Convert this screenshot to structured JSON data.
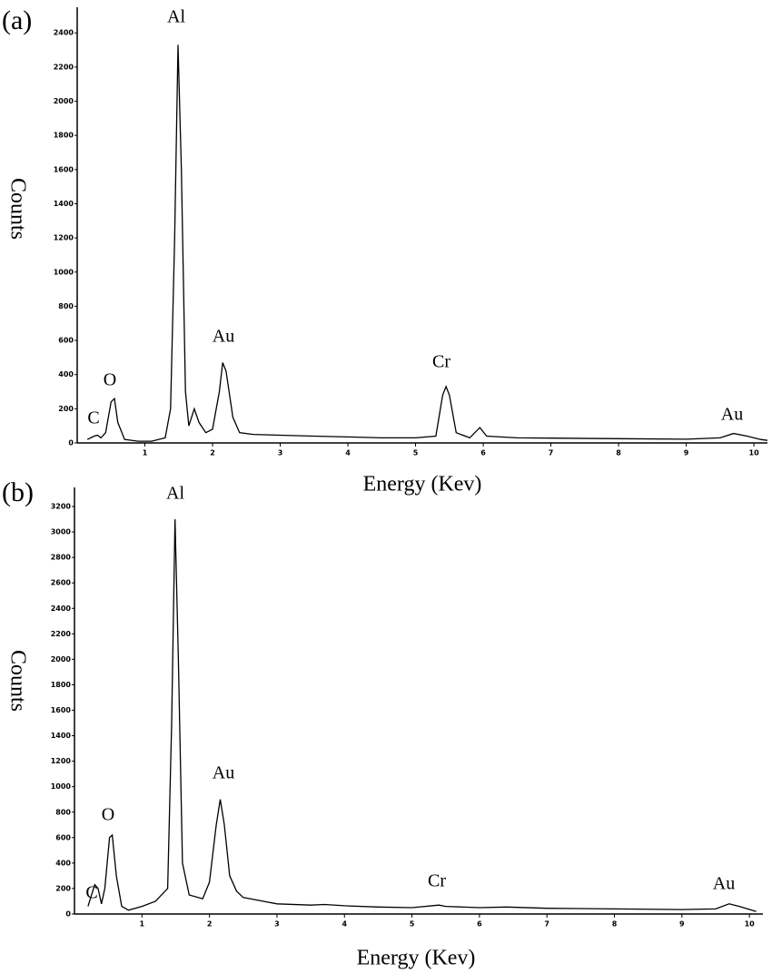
{
  "chart_data": [
    {
      "type": "line",
      "label": "(a)",
      "xlabel": "Energy (Kev)",
      "ylabel": "Counts",
      "color": "#000000",
      "x": [
        0.15,
        0.25,
        0.3,
        0.35,
        0.42,
        0.5,
        0.55,
        0.6,
        0.7,
        0.9,
        1.1,
        1.3,
        1.38,
        1.44,
        1.49,
        1.54,
        1.6,
        1.65,
        1.73,
        1.8,
        1.9,
        2.0,
        2.1,
        2.15,
        2.2,
        2.3,
        2.4,
        2.6,
        3.0,
        3.5,
        4.0,
        4.5,
        5.0,
        5.3,
        5.4,
        5.45,
        5.5,
        5.6,
        5.8,
        5.95,
        6.05,
        6.5,
        7,
        8,
        9,
        9.5,
        9.7,
        9.9,
        10.1,
        10.2
      ],
      "values": [
        20,
        40,
        45,
        30,
        60,
        240,
        260,
        120,
        20,
        10,
        10,
        30,
        200,
        1200,
        2330,
        1600,
        300,
        100,
        200,
        120,
        60,
        80,
        300,
        470,
        420,
        150,
        60,
        50,
        45,
        40,
        35,
        30,
        30,
        40,
        280,
        330,
        280,
        60,
        30,
        90,
        40,
        30,
        28,
        25,
        22,
        30,
        55,
        40,
        20,
        15
      ],
      "xlim": [
        0,
        10.2
      ],
      "ylim": [
        0,
        2550
      ],
      "xticks": [
        1,
        2,
        3,
        4,
        5,
        6,
        7,
        8,
        9,
        10
      ],
      "yticks": [
        0,
        200,
        400,
        600,
        800,
        1000,
        1200,
        1400,
        1600,
        1800,
        2000,
        2200,
        2400
      ],
      "annotations": [
        "C",
        "O",
        "Al",
        "Au",
        "Cr",
        "Au"
      ]
    },
    {
      "type": "line",
      "label": "(b)",
      "xlabel": "Energy (Kev)",
      "ylabel": "Counts",
      "color": "#000000",
      "x": [
        0.2,
        0.3,
        0.35,
        0.4,
        0.45,
        0.52,
        0.56,
        0.62,
        0.7,
        0.8,
        1.0,
        1.2,
        1.38,
        1.44,
        1.49,
        1.54,
        1.6,
        1.7,
        1.9,
        2.0,
        2.1,
        2.16,
        2.22,
        2.3,
        2.4,
        2.5,
        2.8,
        3.0,
        3.5,
        3.7,
        4,
        4.5,
        5,
        5.4,
        5.5,
        6,
        6.4,
        7,
        8,
        9,
        9.5,
        9.7,
        9.85,
        10.1
      ],
      "values": [
        60,
        230,
        200,
        80,
        200,
        600,
        620,
        300,
        60,
        30,
        60,
        100,
        200,
        1500,
        3100,
        2000,
        400,
        150,
        120,
        250,
        700,
        900,
        700,
        300,
        180,
        130,
        100,
        80,
        70,
        75,
        65,
        55,
        50,
        70,
        60,
        50,
        55,
        45,
        40,
        35,
        40,
        80,
        60,
        20
      ],
      "xlim": [
        0,
        10.2
      ],
      "ylim": [
        0,
        3350
      ],
      "xticks": [
        1,
        2,
        3,
        4,
        5,
        6,
        7,
        8,
        9,
        10
      ],
      "yticks": [
        0,
        200,
        400,
        600,
        800,
        1000,
        1200,
        1400,
        1600,
        1800,
        2000,
        2200,
        2400,
        2600,
        2800,
        3000,
        3200
      ],
      "annotations": [
        "C",
        "O",
        "Al",
        "Au",
        "Cr",
        "Au"
      ]
    }
  ]
}
